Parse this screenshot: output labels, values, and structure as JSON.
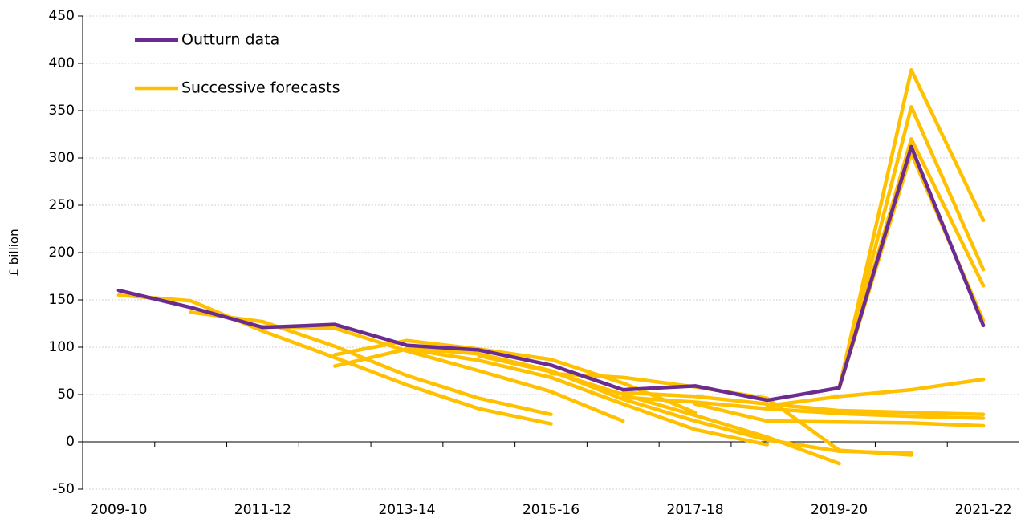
{
  "chart_data": {
    "type": "line",
    "y_label": "£ billion",
    "categories": [
      "2009-10",
      null,
      "2011-12",
      null,
      "2013-14",
      null,
      "2015-16",
      null,
      "2017-18",
      null,
      "2019-20",
      null,
      "2021-22"
    ],
    "ylim": [
      -50,
      450
    ],
    "yticks": [
      -50,
      0,
      50,
      100,
      150,
      200,
      250,
      300,
      350,
      400,
      450
    ],
    "grid": true,
    "legend": "top-left",
    "series": [
      {
        "name": "Outturn data",
        "color": "#6a2c91",
        "values": [
          160,
          142,
          121,
          124,
          102,
          97,
          81,
          55,
          59,
          44,
          57,
          312,
          123
        ]
      },
      {
        "name": "Successive forecasts",
        "color": "#ffc000",
        "values": [
          [
            155,
            149,
            117,
            89,
            60,
            35,
            19,
            null,
            null,
            null,
            null,
            null,
            null
          ],
          [
            null,
            137,
            127,
            101,
            70,
            46,
            29,
            null,
            null,
            null,
            null,
            null,
            null
          ],
          [
            null,
            null,
            122,
            120,
            96,
            75,
            53,
            22,
            null,
            null,
            null,
            null,
            null
          ],
          [
            null,
            null,
            null,
            80,
            98,
            86,
            68,
            40,
            13,
            -3,
            null,
            null,
            null
          ],
          [
            null,
            null,
            null,
            92,
            107,
            98,
            87,
            62,
            31,
            null,
            null,
            null,
            null
          ],
          [
            null,
            null,
            null,
            null,
            99,
            93,
            75,
            45,
            22,
            2,
            -10,
            -12,
            null
          ],
          [
            null,
            null,
            null,
            null,
            null,
            91,
            74,
            50,
            28,
            5,
            -23,
            null,
            null
          ],
          [
            null,
            null,
            null,
            null,
            null,
            null,
            72,
            68,
            58,
            46,
            -9,
            -14,
            null
          ],
          [
            null,
            null,
            null,
            null,
            null,
            null,
            null,
            52,
            48,
            40,
            33,
            31,
            29
          ],
          [
            null,
            null,
            null,
            null,
            null,
            null,
            null,
            47,
            42,
            35,
            30,
            27,
            25
          ],
          [
            null,
            null,
            null,
            null,
            null,
            null,
            null,
            null,
            40,
            22,
            21,
            20,
            17
          ],
          [
            null,
            null,
            null,
            null,
            null,
            null,
            null,
            null,
            null,
            38,
            48,
            55,
            66
          ],
          [
            null,
            null,
            null,
            null,
            null,
            null,
            null,
            null,
            null,
            null,
            57,
            393,
            234
          ],
          [
            null,
            null,
            null,
            null,
            null,
            null,
            null,
            null,
            null,
            null,
            57,
            354,
            182
          ],
          [
            null,
            null,
            null,
            null,
            null,
            null,
            null,
            null,
            null,
            null,
            57,
            320,
            165
          ],
          [
            null,
            null,
            null,
            null,
            null,
            null,
            null,
            null,
            null,
            null,
            57,
            305,
            128
          ]
        ]
      }
    ]
  }
}
